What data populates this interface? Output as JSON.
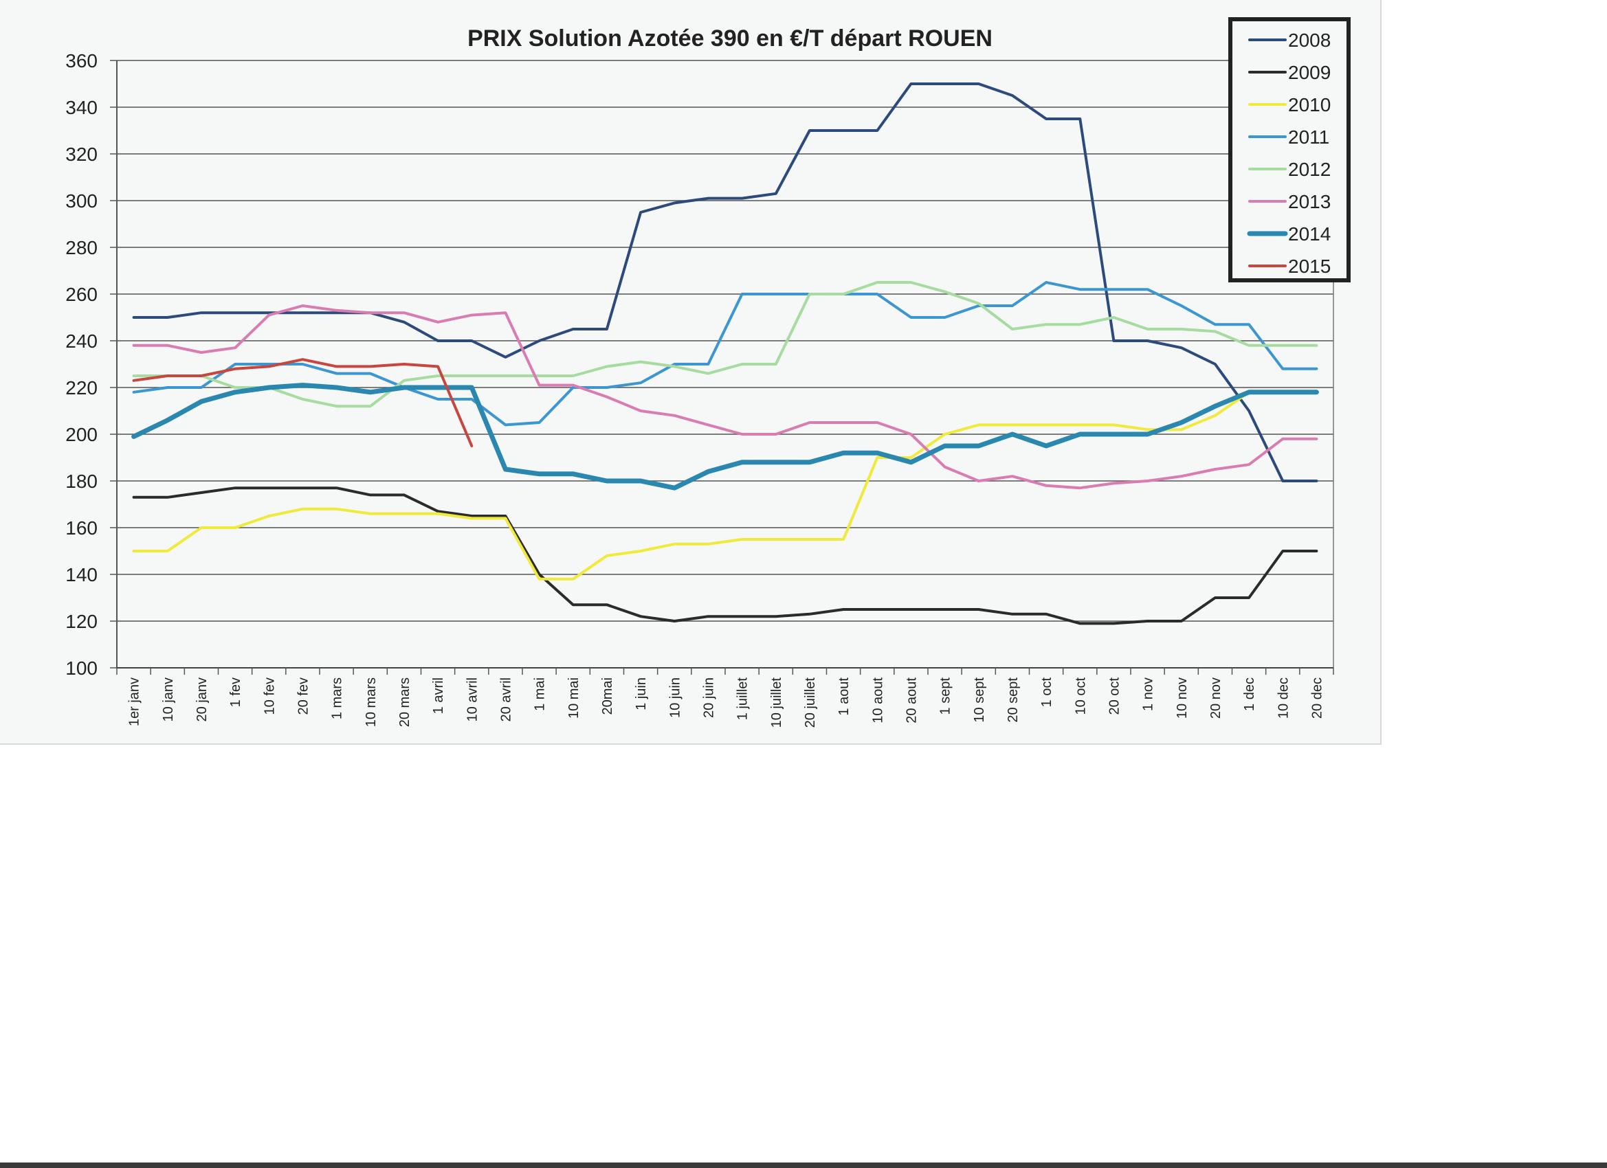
{
  "chart_data": {
    "type": "line",
    "title": "PRIX Solution Azotée 390 en €/T départ ROUEN",
    "xlabel": "",
    "ylabel": "",
    "ylim": [
      100,
      360
    ],
    "yticks": [
      100,
      120,
      140,
      160,
      180,
      200,
      220,
      240,
      260,
      280,
      300,
      320,
      340,
      360
    ],
    "grid": true,
    "legend_position": "top-right",
    "categories": [
      "1er janv",
      "10 janv",
      "20 janv",
      "1 fev",
      "10 fev",
      "20 fev",
      "1 mars",
      "10 mars",
      "20 mars",
      "1 avril",
      "10 avril",
      "20 avril",
      "1 mai",
      "10 mai",
      "20mai",
      "1 juin",
      "10 juin",
      "20 juin",
      "1 juillet",
      "10 juillet",
      "20 juillet",
      "1 aout",
      "10 aout",
      "20 aout",
      "1 sept",
      "10 sept",
      "20 sept",
      "1 oct",
      "10 oct",
      "20 oct",
      "1 nov",
      "10 nov",
      "20 nov",
      "1 dec",
      "10 dec",
      "20 dec"
    ],
    "series": [
      {
        "name": "2008",
        "color": "#2c4a7c",
        "width": 4,
        "values": [
          250,
          250,
          252,
          252,
          252,
          252,
          252,
          252,
          248,
          240,
          240,
          233,
          240,
          245,
          245,
          295,
          299,
          301,
          301,
          303,
          330,
          330,
          330,
          350,
          350,
          350,
          345,
          335,
          335,
          240,
          240,
          237,
          230,
          210,
          180,
          180
        ]
      },
      {
        "name": "2009",
        "color": "#2b2b2b",
        "width": 4,
        "values": [
          173,
          173,
          175,
          177,
          177,
          177,
          177,
          174,
          174,
          167,
          165,
          165,
          140,
          127,
          127,
          122,
          120,
          122,
          122,
          122,
          123,
          125,
          125,
          125,
          125,
          125,
          123,
          123,
          119,
          119,
          120,
          120,
          130,
          130,
          150,
          150
        ]
      },
      {
        "name": "2010",
        "color": "#f0ea3c",
        "width": 4,
        "values": [
          150,
          150,
          160,
          160,
          165,
          168,
          168,
          166,
          166,
          166,
          164,
          164,
          138,
          138,
          148,
          150,
          153,
          153,
          155,
          155,
          155,
          155,
          190,
          190,
          200,
          204,
          204,
          204,
          204,
          204,
          202,
          202,
          208,
          218,
          218,
          218
        ]
      },
      {
        "name": "2011",
        "color": "#3c96d2",
        "width": 4,
        "values": [
          218,
          220,
          220,
          230,
          230,
          230,
          226,
          226,
          220,
          215,
          215,
          204,
          205,
          220,
          220,
          222,
          230,
          230,
          260,
          260,
          260,
          260,
          260,
          250,
          250,
          255,
          255,
          265,
          262,
          262,
          262,
          255,
          247,
          247,
          228,
          228
        ]
      },
      {
        "name": "2012",
        "color": "#a6dca0",
        "width": 4,
        "values": [
          225,
          225,
          225,
          220,
          220,
          215,
          212,
          212,
          223,
          225,
          225,
          225,
          225,
          225,
          229,
          231,
          229,
          226,
          230,
          230,
          260,
          260,
          265,
          265,
          261,
          256,
          245,
          247,
          247,
          250,
          245,
          245,
          244,
          238,
          238,
          238
        ]
      },
      {
        "name": "2013",
        "color": "#d97cb2",
        "width": 4,
        "values": [
          238,
          238,
          235,
          237,
          251,
          255,
          253,
          252,
          252,
          248,
          251,
          252,
          221,
          221,
          216,
          210,
          208,
          204,
          200,
          200,
          205,
          205,
          205,
          200,
          186,
          180,
          182,
          178,
          177,
          179,
          180,
          182,
          185,
          187,
          198,
          198
        ]
      },
      {
        "name": "2014",
        "color": "#2a88b0",
        "width": 7,
        "values": [
          199,
          206,
          214,
          218,
          220,
          221,
          220,
          218,
          220,
          220,
          220,
          185,
          183,
          183,
          180,
          180,
          177,
          184,
          188,
          188,
          188,
          192,
          192,
          188,
          195,
          195,
          200,
          195,
          200,
          200,
          200,
          205,
          212,
          218,
          218,
          218
        ]
      },
      {
        "name": "2015",
        "color": "#c8463e",
        "width": 4,
        "values": [
          223,
          225,
          225,
          228,
          229,
          232,
          229,
          229,
          230,
          229,
          195
        ]
      }
    ]
  }
}
